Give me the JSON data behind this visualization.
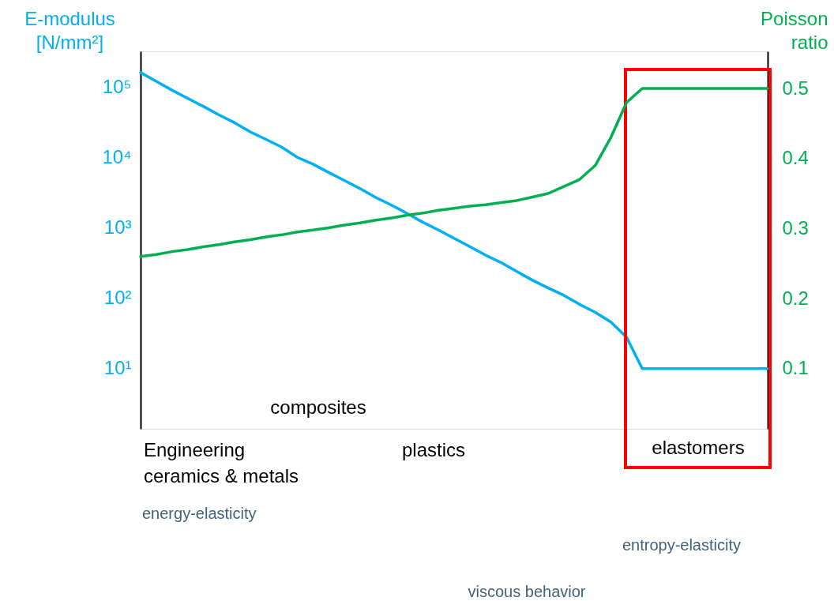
{
  "chart_data": {
    "type": "line",
    "ylabel": "E-modulus [N/mm²]",
    "y2label": "Poisson ratio",
    "log": "y",
    "grid": false,
    "marker": "none",
    "line_style": "solid",
    "categories": [
      null,
      null,
      null,
      null,
      null,
      null,
      null,
      null,
      null,
      null,
      null,
      null,
      null,
      null,
      null,
      null,
      null,
      null,
      null,
      null,
      null,
      null,
      null,
      null,
      null,
      null,
      null,
      null,
      null,
      null,
      null,
      null,
      null,
      null,
      null,
      null,
      null,
      null,
      null,
      null,
      null
    ],
    "ylim": [
      1.4,
      320000
    ],
    "yticks": [
      {
        "value": 10,
        "label": "10¹"
      },
      {
        "value": 100,
        "label": "10²"
      },
      {
        "value": 1000,
        "label": "10³"
      },
      {
        "value": 10000,
        "label": "10⁴"
      },
      {
        "value": 100000,
        "label": "10⁵"
      }
    ],
    "y2lim": [
      0.014,
      0.553
    ],
    "y2ticks": [
      0.1,
      0.2,
      0.3,
      0.4,
      0.5
    ],
    "series": [
      {
        "color": "#00b0f0",
        "values": [
          160000,
          120000,
          90000,
          69000,
          53000,
          40000,
          31000,
          23000,
          18000,
          14000,
          10000,
          8000,
          6100,
          4700,
          3600,
          2700,
          2100,
          1600,
          1200,
          930,
          710,
          540,
          410,
          320,
          240,
          180,
          140,
          110,
          82,
          63,
          46,
          28,
          10,
          10,
          10,
          10,
          10,
          10,
          10,
          10,
          10
        ]
      },
      {
        "color": "#00b050",
        "axis": "y2",
        "values": [
          0.26,
          0.263,
          0.267,
          0.27,
          0.274,
          0.277,
          0.281,
          0.284,
          0.288,
          0.291,
          0.295,
          0.298,
          0.301,
          0.305,
          0.308,
          0.312,
          0.315,
          0.319,
          0.322,
          0.326,
          0.329,
          0.332,
          0.334,
          0.337,
          0.34,
          0.345,
          0.35,
          0.36,
          0.37,
          0.39,
          0.43,
          0.48,
          0.5,
          0.5,
          0.5,
          0.5,
          0.5,
          0.5,
          0.5,
          0.5,
          0.5
        ]
      }
    ],
    "annotations": [
      "composites",
      "Engineering\nceramics & metals",
      "plastics",
      "elastomers",
      "energy-elasticity",
      "entropy-elasticity",
      "viscous behavior"
    ]
  }
}
